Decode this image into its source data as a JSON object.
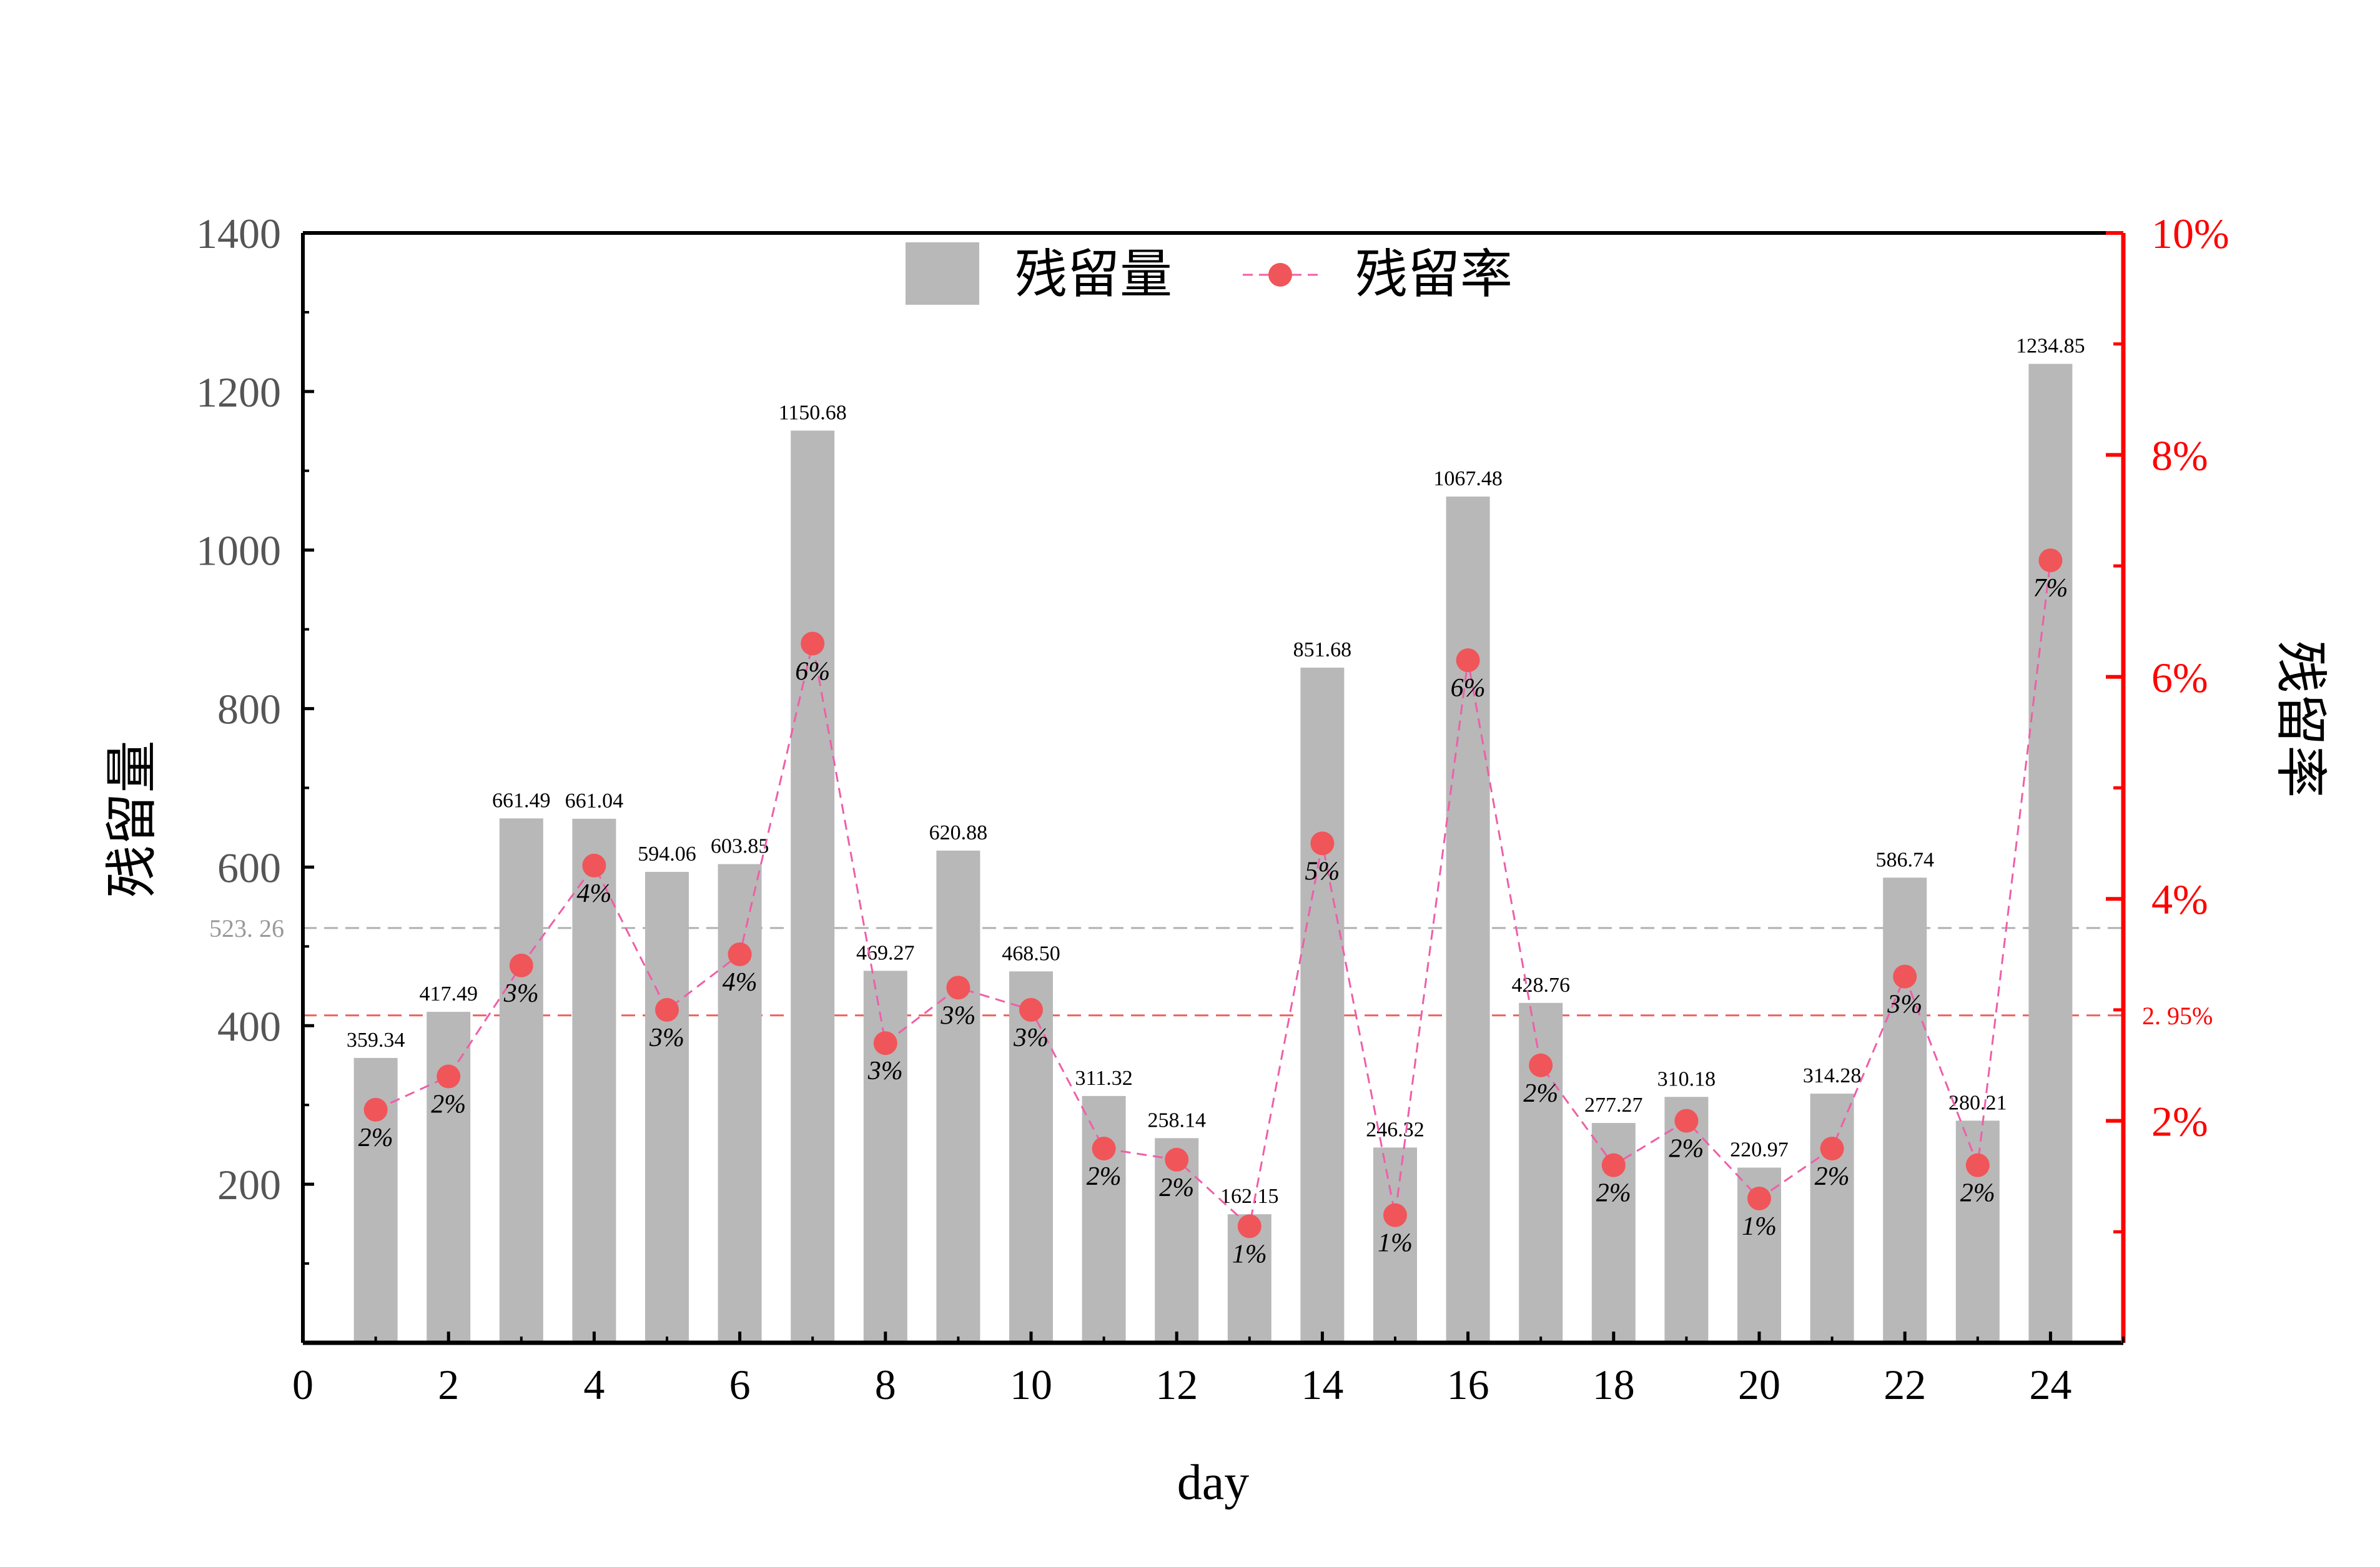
{
  "chart_data": {
    "type": "bar",
    "xlabel": "day",
    "ylabel_left": "残留量",
    "ylabel_right": "残留率",
    "x": [
      1,
      2,
      3,
      4,
      5,
      6,
      7,
      8,
      9,
      10,
      11,
      12,
      13,
      14,
      15,
      16,
      17,
      18,
      19,
      20,
      21,
      22,
      23,
      24
    ],
    "x_ticks": [
      "0",
      "2",
      "4",
      "6",
      "8",
      "10",
      "12",
      "14",
      "16",
      "18",
      "20",
      "22",
      "24"
    ],
    "x_tick_values": [
      0,
      2,
      4,
      6,
      8,
      10,
      12,
      14,
      16,
      18,
      20,
      22,
      24
    ],
    "xlim": [
      0,
      25
    ],
    "ylim_left": [
      0,
      1400
    ],
    "left_ticks": [
      "200",
      "400",
      "600",
      "800",
      "1000",
      "1200",
      "1400"
    ],
    "left_tick_values": [
      200,
      400,
      600,
      800,
      1000,
      1200,
      1400
    ],
    "ylim_right": [
      0,
      10
    ],
    "right_ticks": [
      "2%",
      "4%",
      "6%",
      "8%",
      "10%"
    ],
    "right_tick_values": [
      2,
      4,
      6,
      8,
      10
    ],
    "series": [
      {
        "name": "残留量",
        "type": "bar",
        "color": "#b8b8b8",
        "values": [
          359.34,
          417.49,
          661.49,
          661.04,
          594.06,
          603.85,
          1150.68,
          469.27,
          620.88,
          468.5,
          311.32,
          258.14,
          162.15,
          851.68,
          246.32,
          1067.48,
          428.76,
          277.27,
          310.18,
          220.97,
          314.28,
          586.74,
          280.21,
          1234.85
        ],
        "labels": [
          "359.34",
          "417.49",
          "661.49",
          "661.04",
          "594.06",
          "603.85",
          "1150.68",
          "469.27",
          "620.88",
          "468.50",
          "311.32",
          "258.14",
          "162.15",
          "851.68",
          "246.32",
          "1067.48",
          "428.76",
          "277.27",
          "310.18",
          "220.97",
          "314.28",
          "586.74",
          "280.21",
          "1234.85"
        ]
      },
      {
        "name": "残留率",
        "type": "line",
        "axis": "right",
        "color": "#f0555a",
        "line_color": "#ee5fa8",
        "values": [
          2.1,
          2.4,
          3.4,
          4.3,
          3.0,
          3.5,
          6.3,
          2.7,
          3.2,
          3.0,
          1.75,
          1.65,
          1.05,
          4.5,
          1.15,
          6.15,
          2.5,
          1.6,
          2.0,
          1.3,
          1.75,
          3.3,
          1.6,
          7.05
        ],
        "labels": [
          "2%",
          "2%",
          "3%",
          "4%",
          "3%",
          "4%",
          "6%",
          "3%",
          "3%",
          "3%",
          "2%",
          "2%",
          "1%",
          "5%",
          "1%",
          "6%",
          "2%",
          "2%",
          "2%",
          "1%",
          "2%",
          "3%",
          "2%",
          "7%"
        ]
      }
    ],
    "reference_lines": [
      {
        "axis": "left",
        "value": 523.26,
        "label": "523. 26",
        "color": "#b0b0b0"
      },
      {
        "axis": "right",
        "value": 2.95,
        "label": "2. 95%",
        "color": "#f06060"
      }
    ],
    "legend_position": "top-center",
    "grid": false
  },
  "colors": {
    "left_axis": "#555555",
    "right_axis": "#ff0000",
    "frame": "#000000"
  }
}
